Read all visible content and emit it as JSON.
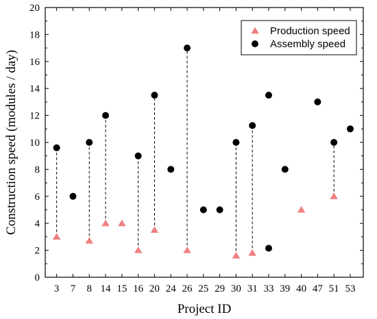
{
  "chart_data": {
    "type": "scatter",
    "xlabel": "Project ID",
    "ylabel": "Construction speed (modules / day)",
    "categories": [
      "3",
      "7",
      "8",
      "14",
      "15",
      "16",
      "20",
      "24",
      "26",
      "25",
      "29",
      "30",
      "31",
      "33",
      "39",
      "40",
      "47",
      "51",
      "53"
    ],
    "ylim": [
      0,
      20
    ],
    "yticks": [
      0,
      2,
      4,
      6,
      8,
      10,
      12,
      14,
      16,
      18,
      20
    ],
    "series": [
      {
        "name": "Production speed",
        "marker": "triangle",
        "color": "#f08080",
        "values": [
          3.0,
          null,
          2.7,
          4.0,
          4.0,
          2.0,
          3.5,
          null,
          2.0,
          null,
          null,
          1.6,
          1.8,
          null,
          null,
          5.0,
          null,
          6.0,
          null
        ]
      },
      {
        "name": "Assembly speed",
        "marker": "circle",
        "color": "#000000",
        "values": [
          9.6,
          6.0,
          10.0,
          12.0,
          null,
          9.0,
          13.5,
          8.0,
          17.0,
          5.0,
          5.0,
          10.0,
          11.25,
          13.5,
          8.0,
          null,
          13.0,
          10.0,
          11.0
        ]
      }
    ],
    "extra_points": [
      {
        "series": "Assembly speed",
        "category": "33",
        "value": 2.15
      }
    ],
    "connectors": [
      "3",
      "8",
      "14",
      "16",
      "20",
      "26",
      "30",
      "31",
      "51"
    ],
    "legend": {
      "position": "top-right"
    },
    "grid": false
  }
}
